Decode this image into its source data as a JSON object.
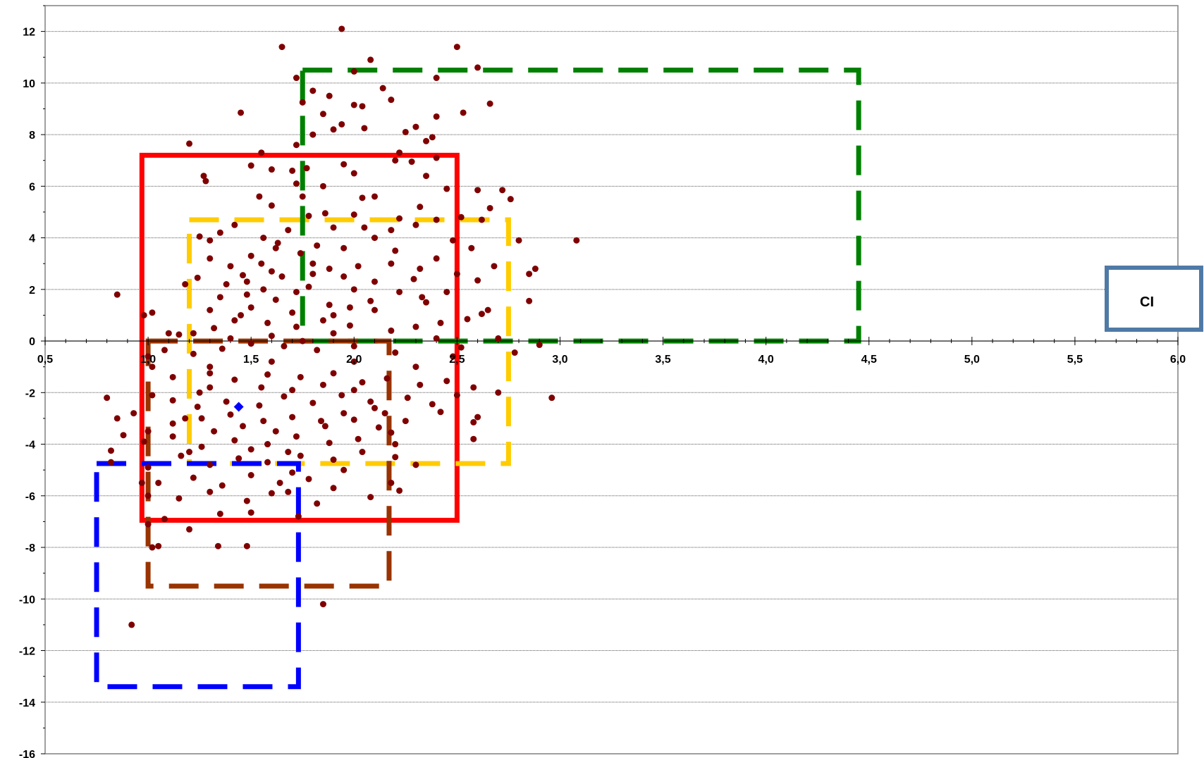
{
  "chart_data": {
    "type": "scatter",
    "title": "",
    "xlabel": "",
    "ylabel": "",
    "xlim": [
      0.5,
      6.0
    ],
    "ylim": [
      -16,
      13
    ],
    "x_ticks": [
      0.5,
      1.0,
      1.5,
      2.0,
      2.5,
      3.0,
      3.5,
      4.0,
      4.5,
      5.0,
      5.5,
      6.0
    ],
    "x_tick_labels": [
      "0,5",
      "1,0",
      "1,5",
      "2,0",
      "2,5",
      "3,0",
      "3,5",
      "4,0",
      "4,5",
      "5,0",
      "5,5",
      "6,0"
    ],
    "y_ticks": [
      12,
      10,
      8,
      6,
      4,
      2,
      0,
      -2,
      -4,
      -6,
      -8,
      -10,
      -12,
      -14,
      -16
    ],
    "y_tick_labels": [
      "12",
      "10",
      "8",
      "6",
      "4",
      "2",
      "0",
      "-2",
      "-4",
      "-6",
      "-8",
      "-10",
      "-12",
      "-14",
      "-16"
    ],
    "grid": "horizontal dotted",
    "point_color": "#7f0000",
    "mean_point": {
      "x": 1.44,
      "y": -2.55,
      "color": "#0000ff"
    },
    "points": [
      [
        1.94,
        12.1
      ],
      [
        1.65,
        11.4
      ],
      [
        2.5,
        11.4
      ],
      [
        2.08,
        10.9
      ],
      [
        2.6,
        10.6
      ],
      [
        1.72,
        10.2
      ],
      [
        2.4,
        10.2
      ],
      [
        2.0,
        10.45
      ],
      [
        2.14,
        9.8
      ],
      [
        1.8,
        9.7
      ],
      [
        1.88,
        9.5
      ],
      [
        1.75,
        9.25
      ],
      [
        2.18,
        9.35
      ],
      [
        2.0,
        9.15
      ],
      [
        2.66,
        9.2
      ],
      [
        2.04,
        9.1
      ],
      [
        1.45,
        8.85
      ],
      [
        1.85,
        8.8
      ],
      [
        1.94,
        8.4
      ],
      [
        2.05,
        8.25
      ],
      [
        1.9,
        8.2
      ],
      [
        2.4,
        8.7
      ],
      [
        2.53,
        8.85
      ],
      [
        1.8,
        8.0
      ],
      [
        2.3,
        8.3
      ],
      [
        2.25,
        8.1
      ],
      [
        2.35,
        7.75
      ],
      [
        2.38,
        7.9
      ],
      [
        1.72,
        7.6
      ],
      [
        1.2,
        7.65
      ],
      [
        1.55,
        7.3
      ],
      [
        2.22,
        7.3
      ],
      [
        2.4,
        7.1
      ],
      [
        2.2,
        7.0
      ],
      [
        2.28,
        6.95
      ],
      [
        1.95,
        6.85
      ],
      [
        1.5,
        6.8
      ],
      [
        1.6,
        6.65
      ],
      [
        1.7,
        6.6
      ],
      [
        1.77,
        6.7
      ],
      [
        1.27,
        6.4
      ],
      [
        1.28,
        6.2
      ],
      [
        1.85,
        6.0
      ],
      [
        1.72,
        6.1
      ],
      [
        2.0,
        6.5
      ],
      [
        2.35,
        6.4
      ],
      [
        2.45,
        5.9
      ],
      [
        2.6,
        5.85
      ],
      [
        2.72,
        5.85
      ],
      [
        2.76,
        5.5
      ],
      [
        2.66,
        5.15
      ],
      [
        1.54,
        5.6
      ],
      [
        2.04,
        5.55
      ],
      [
        2.1,
        5.6
      ],
      [
        2.32,
        5.2
      ],
      [
        1.6,
        5.25
      ],
      [
        1.75,
        5.6
      ],
      [
        1.86,
        4.95
      ],
      [
        1.78,
        4.85
      ],
      [
        2.0,
        4.9
      ],
      [
        2.22,
        4.75
      ],
      [
        2.3,
        4.5
      ],
      [
        2.4,
        4.7
      ],
      [
        2.52,
        4.8
      ],
      [
        2.62,
        4.7
      ],
      [
        1.42,
        4.5
      ],
      [
        1.35,
        4.2
      ],
      [
        1.3,
        3.9
      ],
      [
        1.25,
        4.05
      ],
      [
        1.56,
        4.0
      ],
      [
        1.63,
        3.8
      ],
      [
        1.9,
        4.4
      ],
      [
        2.1,
        4.0
      ],
      [
        2.48,
        3.9
      ],
      [
        2.8,
        3.9
      ],
      [
        3.08,
        3.9
      ],
      [
        2.57,
        3.6
      ],
      [
        2.2,
        3.5
      ],
      [
        1.82,
        3.7
      ],
      [
        1.74,
        3.4
      ],
      [
        1.5,
        3.3
      ],
      [
        1.3,
        3.2
      ],
      [
        1.4,
        2.9
      ],
      [
        2.68,
        2.9
      ],
      [
        2.88,
        2.8
      ],
      [
        2.85,
        2.6
      ],
      [
        2.6,
        2.35
      ],
      [
        2.5,
        2.6
      ],
      [
        2.29,
        2.4
      ],
      [
        2.1,
        2.3
      ],
      [
        1.95,
        2.5
      ],
      [
        1.8,
        2.6
      ],
      [
        1.65,
        2.5
      ],
      [
        1.6,
        2.7
      ],
      [
        1.46,
        2.55
      ],
      [
        1.38,
        2.2
      ],
      [
        1.24,
        2.45
      ],
      [
        1.18,
        2.2
      ],
      [
        0.85,
        1.8
      ],
      [
        1.48,
        1.8
      ],
      [
        1.62,
        1.6
      ],
      [
        1.88,
        1.4
      ],
      [
        2.08,
        1.55
      ],
      [
        2.33,
        1.7
      ],
      [
        2.35,
        1.5
      ],
      [
        2.45,
        1.9
      ],
      [
        2.85,
        1.55
      ],
      [
        2.65,
        1.2
      ],
      [
        2.62,
        1.05
      ],
      [
        2.55,
        0.85
      ],
      [
        2.42,
        0.7
      ],
      [
        2.3,
        0.55
      ],
      [
        2.18,
        0.4
      ],
      [
        1.98,
        0.6
      ],
      [
        1.85,
        0.8
      ],
      [
        1.72,
        0.55
      ],
      [
        1.58,
        0.7
      ],
      [
        1.42,
        0.8
      ],
      [
        1.32,
        0.5
      ],
      [
        1.22,
        0.3
      ],
      [
        1.15,
        0.25
      ],
      [
        1.1,
        0.3
      ],
      [
        1.02,
        1.1
      ],
      [
        0.98,
        1.0
      ],
      [
        2.7,
        0.1
      ],
      [
        2.9,
        -0.15
      ],
      [
        2.78,
        -0.45
      ],
      [
        2.52,
        -0.25
      ],
      [
        2.48,
        -0.6
      ],
      [
        2.2,
        -0.45
      ],
      [
        2.0,
        -0.2
      ],
      [
        1.82,
        -0.35
      ],
      [
        1.66,
        -0.2
      ],
      [
        1.5,
        -0.1
      ],
      [
        1.36,
        -0.3
      ],
      [
        1.22,
        -0.5
      ],
      [
        1.08,
        -0.35
      ],
      [
        1.0,
        -0.6
      ],
      [
        1.02,
        -1.0
      ],
      [
        1.12,
        -1.4
      ],
      [
        1.3,
        -1.25
      ],
      [
        1.42,
        -1.5
      ],
      [
        1.58,
        -1.3
      ],
      [
        1.74,
        -1.4
      ],
      [
        1.9,
        -1.25
      ],
      [
        2.04,
        -1.6
      ],
      [
        2.16,
        -1.45
      ],
      [
        2.32,
        -1.7
      ],
      [
        2.45,
        -1.55
      ],
      [
        2.58,
        -1.8
      ],
      [
        2.96,
        -2.2
      ],
      [
        2.7,
        -2.0
      ],
      [
        2.5,
        -2.1
      ],
      [
        2.38,
        -2.45
      ],
      [
        2.26,
        -2.2
      ],
      [
        2.08,
        -2.35
      ],
      [
        1.94,
        -2.1
      ],
      [
        1.8,
        -2.4
      ],
      [
        1.66,
        -2.15
      ],
      [
        1.54,
        -2.5
      ],
      [
        1.38,
        -2.35
      ],
      [
        1.24,
        -2.55
      ],
      [
        1.12,
        -2.3
      ],
      [
        1.02,
        -2.1
      ],
      [
        0.8,
        -2.2
      ],
      [
        0.85,
        -3.0
      ],
      [
        0.93,
        -2.8
      ],
      [
        1.0,
        -3.5
      ],
      [
        1.12,
        -3.2
      ],
      [
        1.26,
        -3.0
      ],
      [
        1.4,
        -2.85
      ],
      [
        1.56,
        -3.1
      ],
      [
        1.7,
        -2.95
      ],
      [
        1.86,
        -3.3
      ],
      [
        2.0,
        -3.05
      ],
      [
        2.12,
        -3.35
      ],
      [
        2.25,
        -3.1
      ],
      [
        2.42,
        -2.75
      ],
      [
        2.6,
        -2.95
      ],
      [
        2.58,
        -3.15
      ],
      [
        2.18,
        -3.55
      ],
      [
        2.02,
        -3.8
      ],
      [
        1.88,
        -3.95
      ],
      [
        1.72,
        -3.7
      ],
      [
        1.58,
        -4.0
      ],
      [
        1.42,
        -3.85
      ],
      [
        1.26,
        -4.1
      ],
      [
        1.12,
        -3.7
      ],
      [
        0.98,
        -3.9
      ],
      [
        0.82,
        -4.25
      ],
      [
        0.88,
        -3.65
      ],
      [
        2.58,
        -3.8
      ],
      [
        2.2,
        -4.0
      ],
      [
        2.04,
        -4.3
      ],
      [
        1.9,
        -4.6
      ],
      [
        1.74,
        -4.45
      ],
      [
        1.58,
        -4.7
      ],
      [
        1.44,
        -4.55
      ],
      [
        1.3,
        -4.8
      ],
      [
        1.16,
        -4.45
      ],
      [
        1.0,
        -4.9
      ],
      [
        0.82,
        -4.7
      ],
      [
        1.78,
        -5.35
      ],
      [
        1.64,
        -5.5
      ],
      [
        1.5,
        -5.2
      ],
      [
        1.36,
        -5.6
      ],
      [
        1.22,
        -5.3
      ],
      [
        1.05,
        -5.5
      ],
      [
        0.97,
        -5.5
      ],
      [
        1.0,
        -6.0
      ],
      [
        1.15,
        -6.1
      ],
      [
        1.3,
        -5.85
      ],
      [
        1.48,
        -6.2
      ],
      [
        1.68,
        -5.85
      ],
      [
        1.82,
        -6.3
      ],
      [
        2.08,
        -6.05
      ],
      [
        2.22,
        -5.8
      ],
      [
        2.18,
        -5.5
      ],
      [
        1.9,
        -5.7
      ],
      [
        1.6,
        -5.9
      ],
      [
        1.08,
        -6.9
      ],
      [
        1.2,
        -7.3
      ],
      [
        1.35,
        -6.7
      ],
      [
        1.5,
        -6.65
      ],
      [
        1.73,
        -6.8
      ],
      [
        1.0,
        -7.1
      ],
      [
        1.02,
        -8.0
      ],
      [
        1.05,
        -7.95
      ],
      [
        1.34,
        -7.95
      ],
      [
        1.48,
        -7.95
      ],
      [
        1.85,
        -10.2
      ],
      [
        0.92,
        -11.0
      ],
      [
        1.3,
        -1.8
      ],
      [
        1.55,
        -1.8
      ],
      [
        1.7,
        -1.9
      ],
      [
        1.85,
        -1.7
      ],
      [
        2.0,
        -1.9
      ],
      [
        2.15,
        -2.8
      ],
      [
        1.95,
        -2.8
      ],
      [
        1.62,
        -3.5
      ],
      [
        1.46,
        -3.3
      ],
      [
        1.32,
        -3.5
      ],
      [
        1.18,
        -3.0
      ],
      [
        1.5,
        -4.2
      ],
      [
        1.68,
        -4.3
      ],
      [
        1.84,
        -3.1
      ],
      [
        1.9,
        0.3
      ],
      [
        1.6,
        0.2
      ],
      [
        1.4,
        0.1
      ],
      [
        1.3,
        1.2
      ],
      [
        1.5,
        1.3
      ],
      [
        1.7,
        1.1
      ],
      [
        1.9,
        1.0
      ],
      [
        2.1,
        1.2
      ],
      [
        2.22,
        1.9
      ],
      [
        2.0,
        2.0
      ],
      [
        1.78,
        2.1
      ],
      [
        1.56,
        2.0
      ],
      [
        1.35,
        1.7
      ],
      [
        1.55,
        3.0
      ],
      [
        1.8,
        3.0
      ],
      [
        2.02,
        2.9
      ],
      [
        2.18,
        3.0
      ],
      [
        2.32,
        2.8
      ],
      [
        1.95,
        3.6
      ],
      [
        1.68,
        4.3
      ],
      [
        2.18,
        4.3
      ],
      [
        2.4,
        3.2
      ],
      [
        1.45,
        1.0
      ],
      [
        1.75,
        0.0
      ],
      [
        2.0,
        -0.8
      ],
      [
        1.6,
        -0.8
      ],
      [
        1.3,
        -1.0
      ],
      [
        2.3,
        -1.0
      ],
      [
        1.25,
        -2.0
      ],
      [
        2.1,
        -2.6
      ],
      [
        1.2,
        -4.3
      ],
      [
        2.3,
        -4.8
      ],
      [
        1.95,
        -5.0
      ],
      [
        1.7,
        -5.1
      ],
      [
        2.2,
        -4.5
      ],
      [
        2.4,
        0.1
      ],
      [
        1.88,
        2.8
      ],
      [
        1.62,
        3.6
      ],
      [
        2.05,
        4.4
      ],
      [
        1.48,
        2.3
      ],
      [
        1.72,
        1.9
      ],
      [
        1.98,
        1.3
      ]
    ],
    "regions": [
      {
        "color": "#ff0000",
        "style": "solid",
        "x": [
          0.97,
          2.5
        ],
        "y": [
          -6.95,
          7.2
        ]
      },
      {
        "color": "#ffcc00",
        "style": "dashed",
        "x": [
          1.2,
          2.75
        ],
        "y": [
          -4.75,
          4.7
        ]
      },
      {
        "color": "#008000",
        "style": "dashed",
        "x": [
          1.75,
          4.45
        ],
        "y": [
          0.0,
          10.5
        ]
      },
      {
        "color": "#993300",
        "style": "dashed",
        "x": [
          1.0,
          2.17
        ],
        "y": [
          -9.5,
          0.0
        ]
      },
      {
        "color": "#0000ff",
        "style": "dashed",
        "x": [
          0.75,
          1.73
        ],
        "y": [
          -13.4,
          -4.75
        ]
      }
    ]
  },
  "legend": {
    "label": "CI",
    "border_color": "#4f7aa6"
  }
}
